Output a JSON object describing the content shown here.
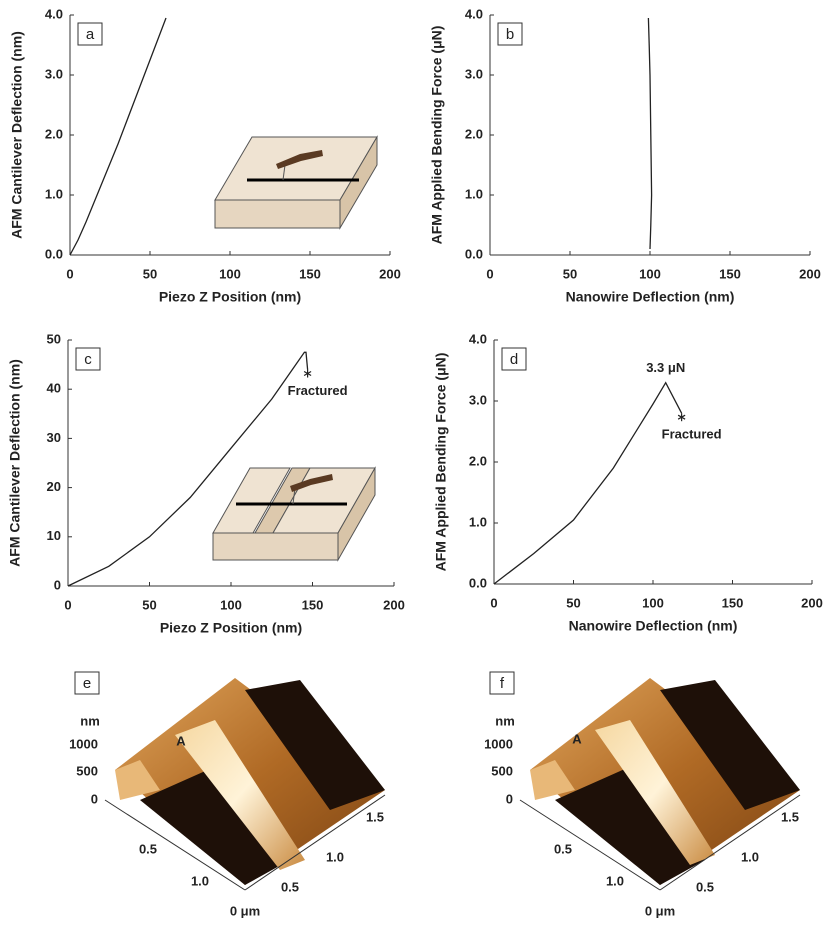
{
  "chart_data": [
    {
      "type": "line",
      "panel_label": "a",
      "xlabel": "Piezo Z Position (nm)",
      "ylabel": "AFM Cantilever Deflection (nm)",
      "xlim": [
        0,
        200
      ],
      "xticks": [
        0,
        50,
        100,
        150,
        200
      ],
      "ylim": [
        0,
        4
      ],
      "yticks": [
        {
          "value": 0,
          "label": "0.0"
        },
        {
          "value": 1,
          "label": "1.0"
        },
        {
          "value": 2,
          "label": "2.0"
        },
        {
          "value": 3,
          "label": "3.0"
        },
        {
          "value": 4,
          "label": "4.0"
        }
      ],
      "color": "#222222",
      "x": [
        0,
        5,
        10,
        20,
        30,
        40,
        50,
        60
      ],
      "values": [
        0,
        0.25,
        0.55,
        1.2,
        1.85,
        2.55,
        3.25,
        3.95
      ]
    },
    {
      "type": "line",
      "panel_label": "b",
      "xlabel": "Nanowire Deflection (nm)",
      "ylabel": "AFM Applied Bending Force (μN)",
      "xlim": [
        0,
        200
      ],
      "xticks": [
        0,
        50,
        100,
        150,
        200
      ],
      "ylim": [
        0,
        4
      ],
      "yticks": [
        {
          "value": 0,
          "label": "0.0"
        },
        {
          "value": 1,
          "label": "1.0"
        },
        {
          "value": 2,
          "label": "2.0"
        },
        {
          "value": 3,
          "label": "3.0"
        },
        {
          "value": 4,
          "label": "4.0"
        }
      ],
      "color": "#222222",
      "x": [
        100,
        100.5,
        101,
        100.5,
        100,
        99.5,
        99
      ],
      "values": [
        0.1,
        0.5,
        1.0,
        2.0,
        3.0,
        3.5,
        3.95
      ]
    },
    {
      "type": "line",
      "panel_label": "c",
      "xlabel": "Piezo Z Position (nm)",
      "ylabel": "AFM Cantilever Deflection (nm)",
      "xlim": [
        0,
        200
      ],
      "xticks": [
        0,
        50,
        100,
        150,
        200
      ],
      "ylim": [
        0,
        50
      ],
      "yticks": [
        0,
        10,
        20,
        30,
        40,
        50
      ],
      "color": "#222222",
      "annotations": [
        "Fractured"
      ],
      "x": [
        0,
        25,
        50,
        75,
        100,
        125,
        145,
        146,
        147
      ],
      "values": [
        0,
        4,
        10,
        18,
        28,
        38,
        47.5,
        47.5,
        44
      ]
    },
    {
      "type": "line",
      "panel_label": "d",
      "xlabel": "Nanowire Deflection (nm)",
      "ylabel": "AFM Applied Bending Force (μN)",
      "xlim": [
        0,
        200
      ],
      "xticks": [
        0,
        50,
        100,
        150,
        200
      ],
      "ylim": [
        0,
        4
      ],
      "yticks": [
        {
          "value": 0,
          "label": "0.0"
        },
        {
          "value": 1,
          "label": "1.0"
        },
        {
          "value": 2,
          "label": "2.0"
        },
        {
          "value": 3,
          "label": "3.0"
        },
        {
          "value": 4,
          "label": "4.0"
        }
      ],
      "color": "#222222",
      "annotations": [
        "3.3 μN",
        "Fractured"
      ],
      "x": [
        0,
        10,
        25,
        50,
        75,
        100,
        108,
        118
      ],
      "values": [
        0,
        0.2,
        0.5,
        1.05,
        1.9,
        2.95,
        3.3,
        2.8
      ]
    }
  ],
  "images": [
    {
      "label": "e",
      "z_unit": "nm",
      "z_ticks": [
        "1000",
        "500",
        "0"
      ],
      "marker": "A",
      "left_ticks": [
        "0.5",
        "1.0"
      ],
      "right_ticks": [
        "1.5",
        "1.0",
        "0.5"
      ],
      "origin": "0 μm"
    },
    {
      "label": "f",
      "z_unit": "nm",
      "z_ticks": [
        "1000",
        "500",
        "0"
      ],
      "marker": "A",
      "left_ticks": [
        "0.5",
        "1.0"
      ],
      "right_ticks": [
        "1.5",
        "1.0",
        "0.5"
      ],
      "origin": "0 μm"
    }
  ]
}
